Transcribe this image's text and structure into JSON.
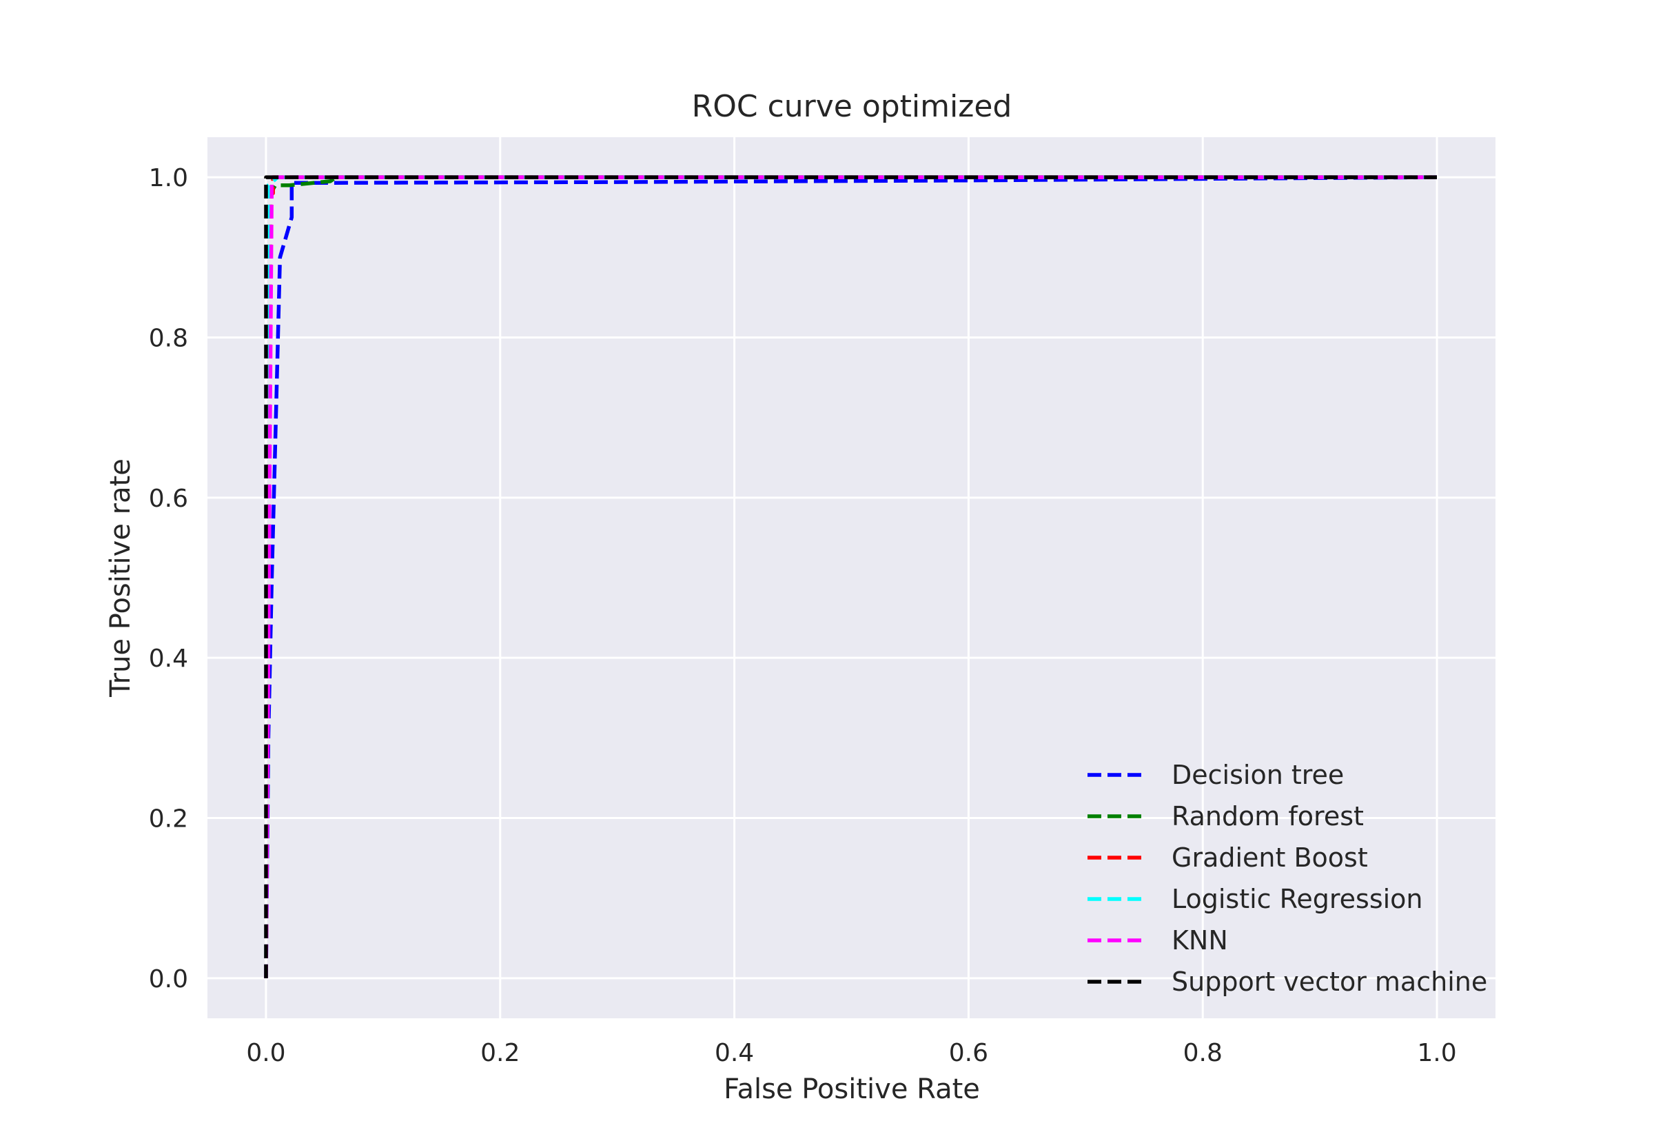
{
  "chart_data": {
    "type": "line",
    "title": "ROC curve optimized",
    "xlabel": "False Positive Rate",
    "ylabel": "True Positive rate",
    "xlim": [
      -0.05,
      1.05
    ],
    "ylim": [
      -0.05,
      1.05
    ],
    "xticks": [
      0.0,
      0.2,
      0.4,
      0.6,
      0.8,
      1.0
    ],
    "xtick_labels": [
      "0.0",
      "0.2",
      "0.4",
      "0.6",
      "0.8",
      "1.0"
    ],
    "yticks": [
      0.0,
      0.2,
      0.4,
      0.6,
      0.8,
      1.0
    ],
    "ytick_labels": [
      "0.0",
      "0.2",
      "0.4",
      "0.6",
      "0.8",
      "1.0"
    ],
    "grid": true,
    "legend_position": "lower-right",
    "background_color": "#eaeaf2",
    "grid_color": "#ffffff",
    "line_style": "dashed",
    "series": [
      {
        "name": "Decision tree",
        "color": "#0000ff",
        "x": [
          0.0,
          0.002,
          0.005,
          0.012,
          0.022,
          0.022,
          0.06,
          0.3,
          0.6,
          1.0
        ],
        "y": [
          0.0,
          0.3,
          0.5,
          0.9,
          0.95,
          0.993,
          0.993,
          0.994,
          0.996,
          1.0
        ]
      },
      {
        "name": "Random forest",
        "color": "#008000",
        "x": [
          0.0,
          0.004,
          0.008,
          0.02,
          0.055,
          0.06,
          1.0
        ],
        "y": [
          0.0,
          0.98,
          0.99,
          0.99,
          0.995,
          1.0,
          1.0
        ]
      },
      {
        "name": "Gradient Boost",
        "color": "#ff0000",
        "x": [
          0.0,
          0.004,
          0.006,
          0.006,
          1.0
        ],
        "y": [
          0.0,
          0.98,
          0.98,
          1.0,
          1.0
        ]
      },
      {
        "name": "Logistic Regression",
        "color": "#00ffff",
        "x": [
          0.0,
          0.002,
          0.01,
          1.0
        ],
        "y": [
          0.0,
          0.99,
          1.0,
          1.0
        ]
      },
      {
        "name": "KNN",
        "color": "#ff00ff",
        "x": [
          0.0,
          0.005,
          0.015,
          1.0
        ],
        "y": [
          0.0,
          1.0,
          1.0,
          1.0
        ]
      },
      {
        "name": "Support vector machine",
        "color": "#000000",
        "x": [
          0.0,
          0.0,
          1.0
        ],
        "y": [
          0.0,
          1.0,
          1.0
        ]
      }
    ]
  }
}
